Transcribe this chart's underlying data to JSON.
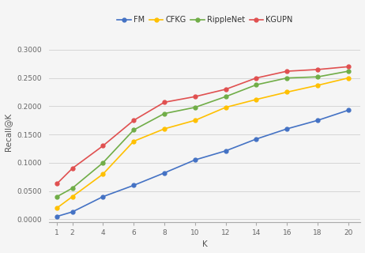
{
  "k_values": [
    1,
    2,
    4,
    6,
    8,
    10,
    12,
    14,
    16,
    18,
    20
  ],
  "FM": [
    0.005,
    0.013,
    0.04,
    0.06,
    0.082,
    0.105,
    0.121,
    0.142,
    0.16,
    0.175,
    0.193
  ],
  "CFKG": [
    0.02,
    0.04,
    0.08,
    0.138,
    0.16,
    0.175,
    0.198,
    0.212,
    0.225,
    0.237,
    0.25
  ],
  "RippleNet": [
    0.04,
    0.055,
    0.1,
    0.158,
    0.187,
    0.198,
    0.217,
    0.238,
    0.25,
    0.252,
    0.262
  ],
  "KGUPN": [
    0.063,
    0.09,
    0.13,
    0.175,
    0.207,
    0.217,
    0.23,
    0.25,
    0.262,
    0.265,
    0.27
  ],
  "colors": {
    "FM": "#4472C4",
    "CFKG": "#FFC000",
    "RippleNet": "#70AD47",
    "KGUPN": "#E05050"
  },
  "xlabel": "K",
  "ylabel": "Recall@K",
  "ylim": [
    -0.005,
    0.315
  ],
  "yticks": [
    0.0,
    0.05,
    0.1,
    0.15,
    0.2,
    0.25,
    0.3
  ],
  "ytick_labels": [
    "0.0000",
    "0.0500",
    "0.1000",
    "0.1500",
    "0.2000",
    "0.2500",
    "0.3000"
  ],
  "legend_order": [
    "FM",
    "CFKG",
    "RippleNet",
    "KGUPN"
  ],
  "background_color": "#f5f5f5",
  "grid_color": "#d0d0d0"
}
